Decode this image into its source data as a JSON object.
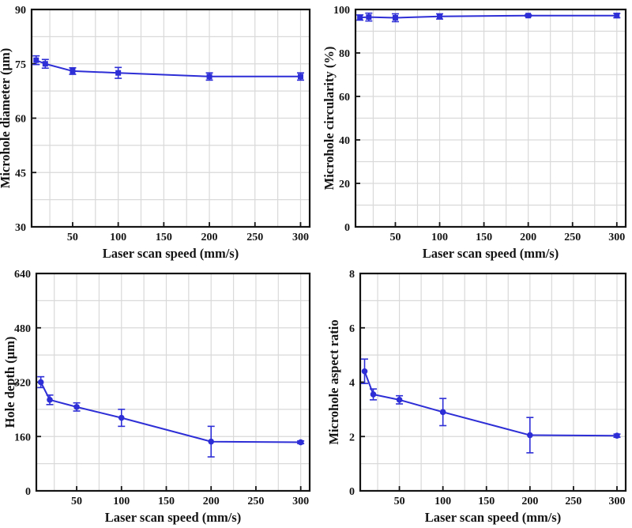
{
  "page": {
    "background": "#ffffff",
    "description": "Four-panel line chart figure: effect of laser scan speed on microhole characteristics"
  },
  "styles": {
    "line_color": "#2e2ed6",
    "grid_color": "#d9d9d9",
    "axis_color": "#141414",
    "text_color": "#141414"
  },
  "chart_data": [
    {
      "id": "microhole-diameter",
      "type": "line",
      "title": "",
      "xlabel": "Laser scan speed (mm/s)",
      "ylabel": "Microhole diameter (µm)",
      "x": [
        10,
        20,
        50,
        100,
        200,
        300
      ],
      "y": [
        76,
        75,
        73,
        72.5,
        71.5,
        71.5
      ],
      "yerr": [
        1.2,
        1.2,
        0.9,
        1.5,
        1.0,
        1.0
      ],
      "xlim": [
        5,
        310
      ],
      "ylim": [
        30,
        90
      ],
      "xticks": [
        50,
        100,
        150,
        200,
        250,
        300
      ],
      "yticks": [
        30,
        45,
        60,
        75,
        90
      ],
      "x_minor_step": 25,
      "y_minor_step": 7.5,
      "marker": "square",
      "grid": true,
      "legend": "none"
    },
    {
      "id": "microhole-circularity",
      "type": "line",
      "title": "",
      "xlabel": "Laser scan speed (mm/s)",
      "ylabel": "Microhole circularity (%)",
      "x": [
        10,
        20,
        50,
        100,
        200,
        300
      ],
      "y": [
        96.3,
        96.5,
        96.2,
        96.8,
        97.2,
        97.2
      ],
      "yerr": [
        1.2,
        1.8,
        1.8,
        1.2,
        0.4,
        1.0
      ],
      "xlim": [
        5,
        310
      ],
      "ylim": [
        0,
        100
      ],
      "xticks": [
        50,
        100,
        150,
        200,
        250,
        300
      ],
      "yticks": [
        0,
        20,
        40,
        60,
        80,
        100
      ],
      "x_minor_step": 25,
      "y_minor_step": 10,
      "marker": "square",
      "grid": true,
      "legend": "none"
    },
    {
      "id": "hole-depth",
      "type": "line",
      "title": "",
      "xlabel": "Laser scan speed (mm/s)",
      "ylabel": "Hole depth (µm)",
      "x": [
        10,
        20,
        50,
        100,
        200,
        300
      ],
      "y": [
        320,
        268,
        247,
        215,
        145,
        143
      ],
      "yerr": [
        16,
        14,
        12,
        25,
        45,
        4
      ],
      "xlim": [
        5,
        310
      ],
      "ylim": [
        0,
        640
      ],
      "xticks": [
        50,
        100,
        150,
        200,
        250,
        300
      ],
      "yticks": [
        0,
        160,
        320,
        480,
        640
      ],
      "x_minor_step": 25,
      "y_minor_step": 80,
      "marker": "circle",
      "grid": true,
      "legend": "none"
    },
    {
      "id": "microhole-aspect-ratio",
      "type": "line",
      "title": "",
      "xlabel": "Laser scan speed (mm/s)",
      "ylabel": "Microhole aspect ratio",
      "x": [
        10,
        20,
        50,
        100,
        200,
        300
      ],
      "y": [
        4.4,
        3.55,
        3.35,
        2.9,
        2.05,
        2.03
      ],
      "yerr": [
        0.45,
        0.2,
        0.15,
        0.5,
        0.65,
        0.06
      ],
      "xlim": [
        5,
        310
      ],
      "ylim": [
        0,
        8
      ],
      "xticks": [
        50,
        100,
        150,
        200,
        250,
        300
      ],
      "yticks": [
        0,
        2,
        4,
        6,
        8
      ],
      "x_minor_step": 25,
      "y_minor_step": 1,
      "marker": "circle",
      "grid": true,
      "legend": "none"
    }
  ]
}
